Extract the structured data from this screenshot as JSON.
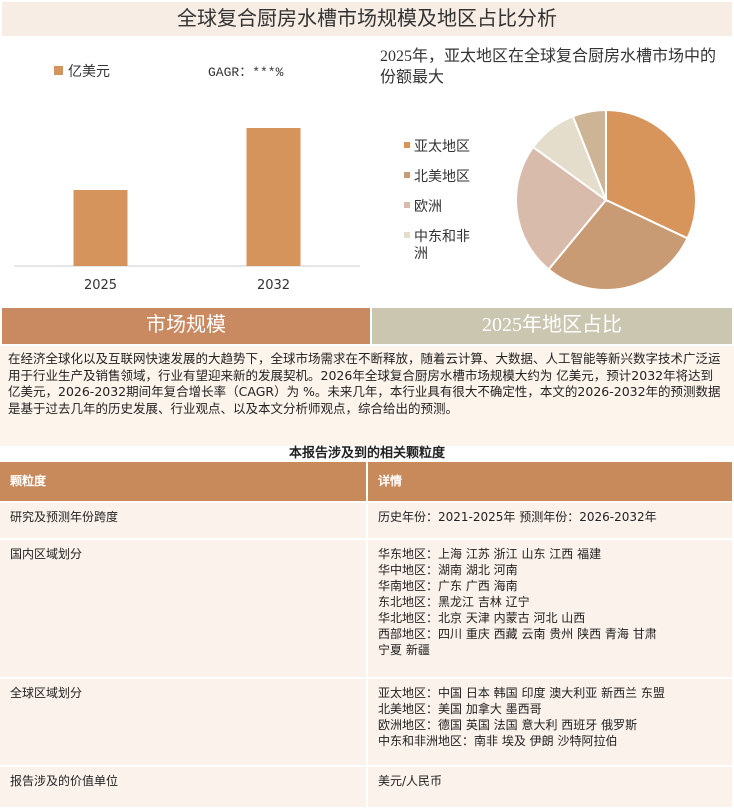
{
  "header": {
    "title": "全球复合厨房水槽市场规模及地区占比分析"
  },
  "chart_data": [
    {
      "type": "bar",
      "categories": [
        "2025",
        "2032"
      ],
      "series": [
        {
          "name": "亿美元",
          "color": "#d4945c",
          "values": [
            76,
            138
          ]
        }
      ],
      "annotation": "GAGR：***%"
    },
    {
      "type": "pie",
      "title": "2025年，亚太地区在全球复合厨房水槽市场中的份额最大",
      "categories": [
        "亚太地区",
        "北美地区",
        "欧洲",
        "中东和非洲",
        null
      ],
      "values": [
        32,
        29,
        24,
        9,
        6
      ],
      "colors": [
        "#d7955b",
        "#c99b74",
        "#d9bbab",
        "#e4ddcc",
        "#cdb495"
      ]
    }
  ],
  "tabs": [
    "市场规模",
    "2025年地区占比"
  ],
  "intro": "在经济全球化以及互联网快速发展的大趋势下，全球市场需求在不断释放，随着云计算、大数据、人工智能等新兴数字技术广泛运用于行业生产及销售领域，行业有望迎来新的发展契机。2026年全球复合厨房水槽市场规模大约为 亿美元，预计2032年将达到 亿美元，2026-2032期间年复合增长率（CAGR）为 %。未来几年，本行业具有很大不确定性，本文的2026-2032年的预测数据是基于过去几年的历史发展、行业观点、以及本文分析师观点，综合给出的预测。",
  "table": {
    "title": "本报告涉及到的相关颗粒度",
    "header": [
      "颗粒度",
      "详情"
    ],
    "rows": [
      [
        "研究及预测年份跨度",
        [
          "历史年份：2021-2025年 预测年份：2026-2032年"
        ]
      ],
      [
        "国内区域划分",
        [
          "华东地区：上海  江苏  浙江  山东  江西  福建",
          "华中地区：湖南  湖北  河南",
          "华南地区：广东  广西  海南",
          "东北地区：黑龙江  吉林  辽宁",
          "华北地区：北京  天津  内蒙古  河北  山西",
          "西部地区：四川  重庆  西藏  云南  贵州  陕西  青海  甘肃",
          "宁夏  新疆"
        ]
      ],
      [
        "全球区域划分",
        [
          "亚太地区：中国  日本  韩国  印度  澳大利亚  新西兰  东盟",
          "北美地区：美国  加拿大  墨西哥",
          "欧洲地区：德国  英国  法国  意大利  西班牙  俄罗斯",
          "中东和非洲地区：南非  埃及  伊朗  沙特阿拉伯"
        ]
      ],
      [
        "报告涉及的价值单位",
        [
          "美元/人民币"
        ]
      ]
    ]
  }
}
